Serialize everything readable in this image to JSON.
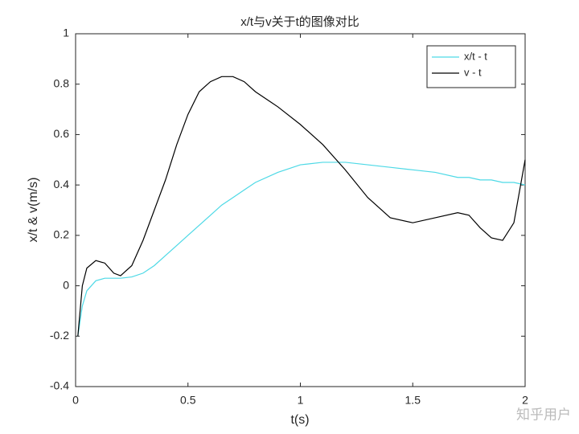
{
  "chart_data": {
    "type": "line",
    "title": "x/t与v关于t的图像对比",
    "x_label": "t(s)",
    "y_label": "x/t & v(m/s)",
    "x": [
      0.01,
      0.03,
      0.05,
      0.09,
      0.13,
      0.17,
      0.2,
      0.25,
      0.3,
      0.35,
      0.4,
      0.45,
      0.5,
      0.55,
      0.6,
      0.65,
      0.7,
      0.75,
      0.8,
      0.9,
      1.0,
      1.1,
      1.2,
      1.3,
      1.4,
      1.5,
      1.6,
      1.7,
      1.75,
      1.8,
      1.85,
      1.9,
      1.95,
      2.0
    ],
    "series": [
      {
        "name": "x/t - t",
        "color": "#4dd9e6",
        "values": [
          -0.2,
          -0.08,
          -0.02,
          0.02,
          0.03,
          0.03,
          0.03,
          0.035,
          0.05,
          0.08,
          0.12,
          0.16,
          0.2,
          0.24,
          0.28,
          0.32,
          0.35,
          0.38,
          0.41,
          0.45,
          0.48,
          0.49,
          0.49,
          0.48,
          0.47,
          0.46,
          0.45,
          0.43,
          0.43,
          0.42,
          0.42,
          0.41,
          0.41,
          0.4
        ]
      },
      {
        "name": "v - t",
        "color": "#000000",
        "values": [
          -0.2,
          0.0,
          0.07,
          0.1,
          0.09,
          0.05,
          0.04,
          0.08,
          0.18,
          0.3,
          0.42,
          0.56,
          0.68,
          0.77,
          0.81,
          0.83,
          0.83,
          0.81,
          0.77,
          0.71,
          0.64,
          0.56,
          0.46,
          0.35,
          0.27,
          0.25,
          0.27,
          0.29,
          0.28,
          0.23,
          0.19,
          0.18,
          0.25,
          0.5
        ]
      }
    ],
    "xlim": [
      0,
      2
    ],
    "xticks": [
      0,
      0.5,
      1,
      1.5,
      2
    ],
    "ylim": [
      -0.4,
      1
    ],
    "yticks": [
      -0.4,
      -0.2,
      0,
      0.2,
      0.4,
      0.6,
      0.8,
      1
    ],
    "legend": "upper right",
    "watermark": "知乎用户"
  }
}
